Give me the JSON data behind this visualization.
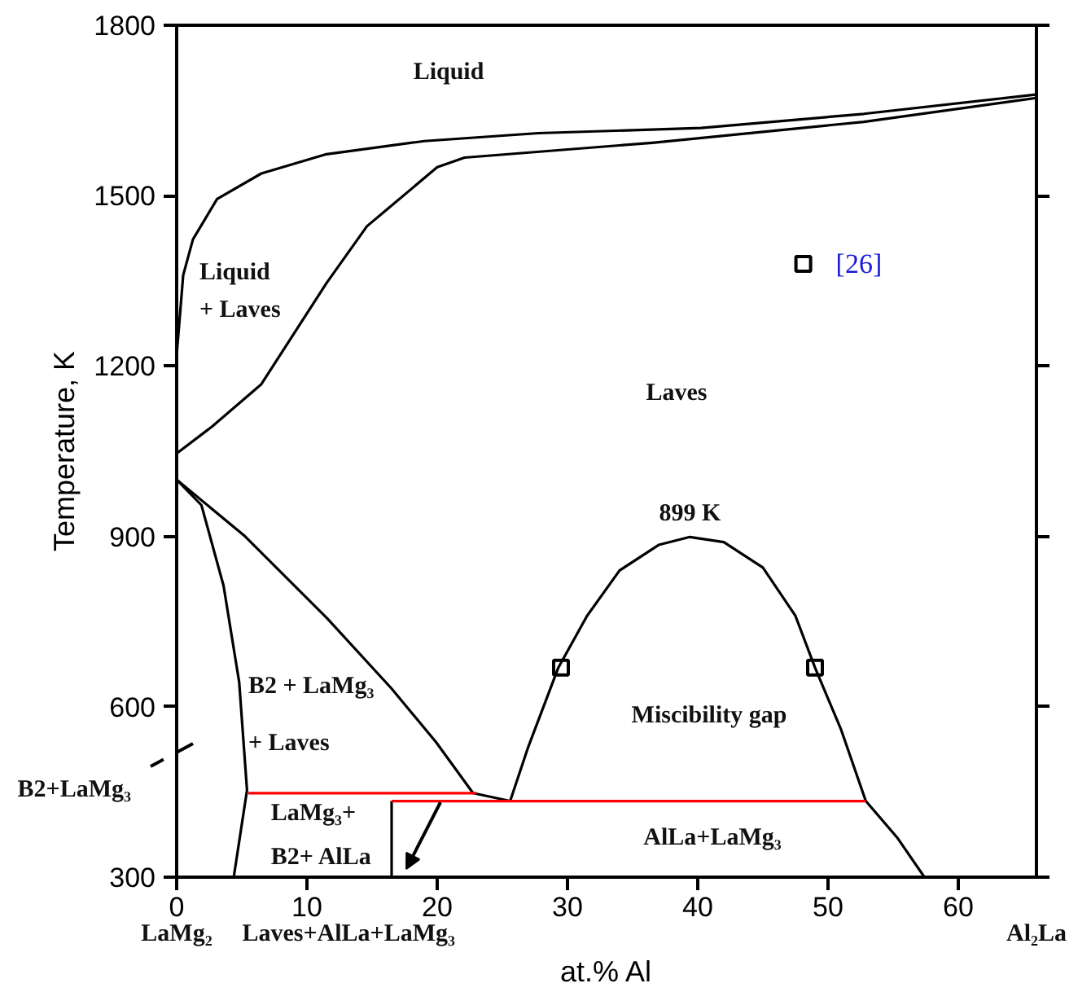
{
  "chart_data": {
    "type": "line",
    "xlabel": "at.% Al",
    "ylabel": "Temperature, K",
    "xlim": [
      0,
      66
    ],
    "ylim": [
      300,
      1800
    ],
    "xticks": [
      0,
      10,
      20,
      30,
      40,
      50,
      60
    ],
    "yticks": [
      300,
      600,
      900,
      1200,
      1500,
      1800
    ],
    "grid": false,
    "legend": false,
    "line_style": "solid",
    "series": [
      {
        "type": "line",
        "color": "#000000",
        "x": [
          0,
          0.5,
          1.25,
          3.1,
          6.5,
          11.5,
          19,
          27.75,
          40.25,
          52.75,
          66
        ],
        "values": [
          1219,
          1360,
          1423,
          1494,
          1539,
          1573,
          1596,
          1610,
          1619,
          1644,
          1678
        ]
      },
      {
        "type": "line",
        "color": "#000000",
        "x": [
          0,
          2.75,
          6.5,
          11.5,
          14.6,
          20,
          22.1,
          36.5,
          52.75,
          66
        ],
        "values": [
          1046,
          1094,
          1168,
          1346,
          1446,
          1550,
          1567,
          1593,
          1630,
          1672
        ]
      },
      {
        "type": "line",
        "color": "#000000",
        "x": [
          0,
          1.9,
          3.6,
          4.8,
          5.4,
          4.4
        ],
        "values": [
          1000,
          955,
          813,
          643,
          453,
          303
        ]
      },
      {
        "type": "line",
        "color": "#000000",
        "x": [
          0,
          5.25,
          11.5,
          16.5,
          19.9,
          22.75,
          25.6
        ],
        "values": [
          1000,
          900,
          757,
          632,
          538,
          448,
          434
        ]
      },
      {
        "type": "line",
        "color": "#000000",
        "x": [
          25.6,
          27,
          29.3,
          31.5,
          34,
          37,
          39.4,
          42,
          45,
          47.5,
          49,
          51,
          52.9,
          55.3,
          57.4
        ],
        "values": [
          434,
          530,
          669,
          760,
          840,
          885,
          899,
          890,
          845,
          760,
          669,
          560,
          434,
          370,
          300
        ]
      },
      {
        "type": "line",
        "color": "#000000",
        "x": [
          16.5,
          16.5
        ],
        "values": [
          300,
          434
        ]
      },
      {
        "type": "line",
        "color": "#ff0000",
        "x": [
          5.5,
          23
        ],
        "values": [
          448,
          448
        ]
      },
      {
        "type": "line",
        "color": "#ff0000",
        "x": [
          16.5,
          52.9
        ],
        "values": [
          434,
          434
        ]
      },
      {
        "type": "scatter",
        "marker": "square",
        "name": "[26]",
        "color": "#000000",
        "x": [
          48.1,
          29.5,
          49
        ],
        "values": [
          1380,
          669,
          669
        ]
      }
    ],
    "annotations": [
      "Liquid",
      "Liquid",
      "+ Laves",
      "Laves",
      {
        "text": "899 K",
        "x": 39.4,
        "y": 899
      },
      "Miscibility gap",
      "B2 + LaMg₃",
      "+ Laves",
      "LaMg₃+",
      "B2+ AlLa",
      "AlLa+LaMg₃",
      "B2+LaMg₃",
      "LaMg₂",
      "Laves+AlLa+LaMg₃",
      "Al₂La"
    ]
  }
}
